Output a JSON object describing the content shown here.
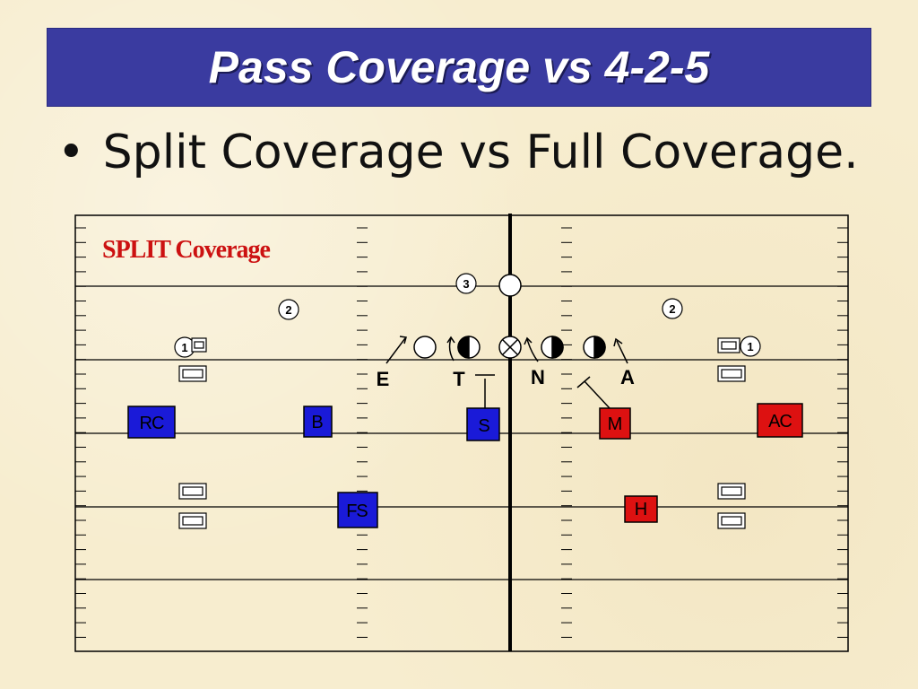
{
  "slide": {
    "title": "Pass Coverage vs 4-2-5",
    "bullet": "Split Coverage vs Full Coverage."
  },
  "diagram": {
    "heading": "SPLIT Coverage",
    "zone_numbers": [
      "3",
      "2",
      "2",
      "1",
      "1"
    ],
    "dline_labels": [
      "E",
      "T",
      "N",
      "A"
    ],
    "blue_defenders": [
      "RC",
      "B",
      "S",
      "FS"
    ],
    "red_defenders": [
      "M",
      "AC",
      "H"
    ],
    "colors": {
      "title_bar": "#3a3ba0",
      "heading": "#cc1111",
      "blue": "#1a1ad8",
      "red": "#dd1111",
      "background": "#f7edcf"
    }
  }
}
